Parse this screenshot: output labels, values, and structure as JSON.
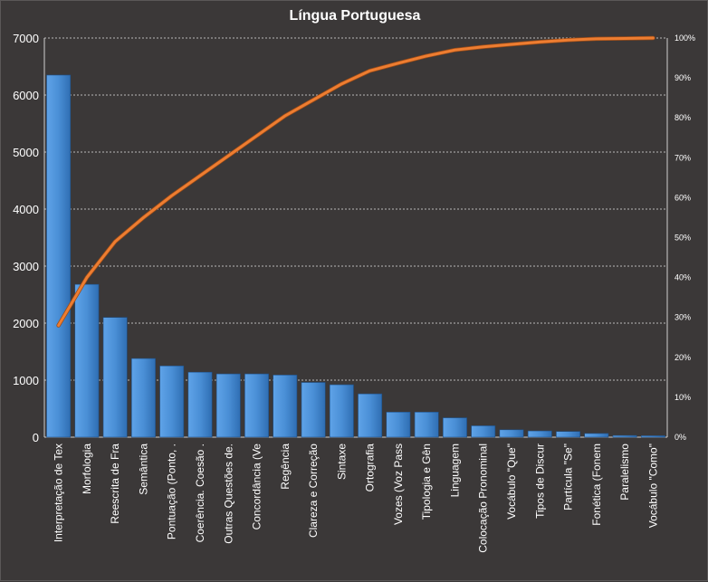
{
  "chart_data": {
    "type": "bar",
    "title": "Língua Portuguesa",
    "categories": [
      "Interpretação de Tex",
      "Morfologia",
      "Reescrita de Fra",
      "Semântica",
      "Pontuação (Ponto, .",
      "Coerência. Coesão .",
      "Outras Questões de.",
      "Concordância (Ve",
      "Regência",
      "Clareza e Correção",
      "Sintaxe",
      "Ortografia",
      "Vozes (Voz Pass",
      "Tipologia e Gên",
      "Linguagem",
      "Colocação Pronominal",
      "Vocábulo \"Que\"",
      "Tipos de Discur",
      "Partícula \"Se\"",
      "Fonética (Fonem",
      "Paralelismo",
      "Vocábulo \"Como\""
    ],
    "series": [
      {
        "type": "bar",
        "axis": "left",
        "color": "#4a90d9",
        "values": [
          6350,
          2680,
          2100,
          1380,
          1250,
          1140,
          1110,
          1110,
          1090,
          960,
          920,
          760,
          440,
          440,
          340,
          200,
          130,
          110,
          100,
          65,
          30,
          25
        ]
      },
      {
        "type": "line",
        "axis": "right",
        "color": "#ed7d31",
        "values": [
          28,
          40,
          49,
          55,
          60.5,
          65.5,
          70.5,
          75.5,
          80.5,
          84.5,
          88.5,
          91.8,
          93.7,
          95.5,
          97,
          97.8,
          98.4,
          99,
          99.5,
          99.8,
          99.9,
          100
        ]
      }
    ],
    "y_left": {
      "min": 0,
      "max": 7000,
      "ticks": [
        0,
        1000,
        2000,
        3000,
        4000,
        5000,
        6000,
        7000
      ]
    },
    "y_right": {
      "min": 0,
      "max": 100,
      "ticks": [
        0,
        10,
        20,
        30,
        40,
        50,
        60,
        70,
        80,
        90,
        100
      ],
      "suffix": "%"
    },
    "xlabel": "",
    "ylabel": "",
    "grid": true,
    "grid_color": "#b8b8b8",
    "background": "#3b3838",
    "legend": "none"
  }
}
